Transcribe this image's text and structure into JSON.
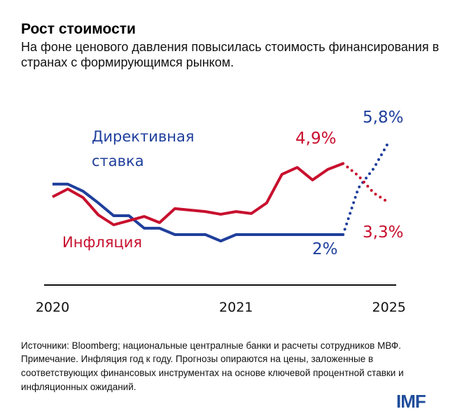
{
  "title": "Рост стоимости",
  "subtitle": "На фоне ценового давления повысилась стоимость финансирования в странах с формирующимся рынком.",
  "chart_data": {
    "type": "line",
    "x_ticks": [
      {
        "index": 0,
        "label": "2020"
      },
      {
        "index": 12,
        "label": "2021"
      },
      {
        "index": 22,
        "label": "2025"
      }
    ],
    "y_unit": "%",
    "grid": false,
    "series": [
      {
        "name": "Директивная ставка",
        "color": "#1f3f9c",
        "values": [
          4.06,
          4.06,
          3.77,
          3.29,
          2.77,
          2.77,
          2.26,
          2.26,
          2.0,
          2.0,
          2.0,
          1.74,
          2.0,
          2.0,
          2.0,
          2.0,
          2.0,
          2.0,
          2.0,
          2.0
        ],
        "forecast": [
          {
            "index": 19,
            "value": 2.0
          },
          {
            "index": 20,
            "value": 3.9
          },
          {
            "index": 21,
            "value": 4.7
          },
          {
            "index": 22,
            "value": 5.8
          }
        ],
        "end_label": "2%",
        "forecast_label": "5,8%"
      },
      {
        "name": "Инфляция",
        "color": "#c8102e",
        "values": [
          3.54,
          3.86,
          3.51,
          2.8,
          2.4,
          2.57,
          2.74,
          2.49,
          3.06,
          3.0,
          2.94,
          2.83,
          2.94,
          2.86,
          3.29,
          4.46,
          4.74,
          4.23,
          4.66,
          4.9
        ],
        "forecast": [
          {
            "index": 19,
            "value": 4.9
          },
          {
            "index": 20,
            "value": 4.4
          },
          {
            "index": 21,
            "value": 3.7
          },
          {
            "index": 22,
            "value": 3.3
          }
        ],
        "end_label": "4,9%",
        "forecast_label": "3,3%"
      }
    ]
  },
  "legend": {
    "policy_line1": "Директивная",
    "policy_line2": "ставка",
    "inflation": "Инфляция"
  },
  "notes": {
    "sources": "Источники: Bloomberg; национальные централные банки и расчеты сотрудников МВФ.",
    "note": "Примечание. Инфляция год к году. Прогнозы опираются на цены, заложенные в соответствующих финансовых инструментах на основе ключевой процентной ставки и инфляционных ожиданий."
  },
  "logo": "IMF"
}
